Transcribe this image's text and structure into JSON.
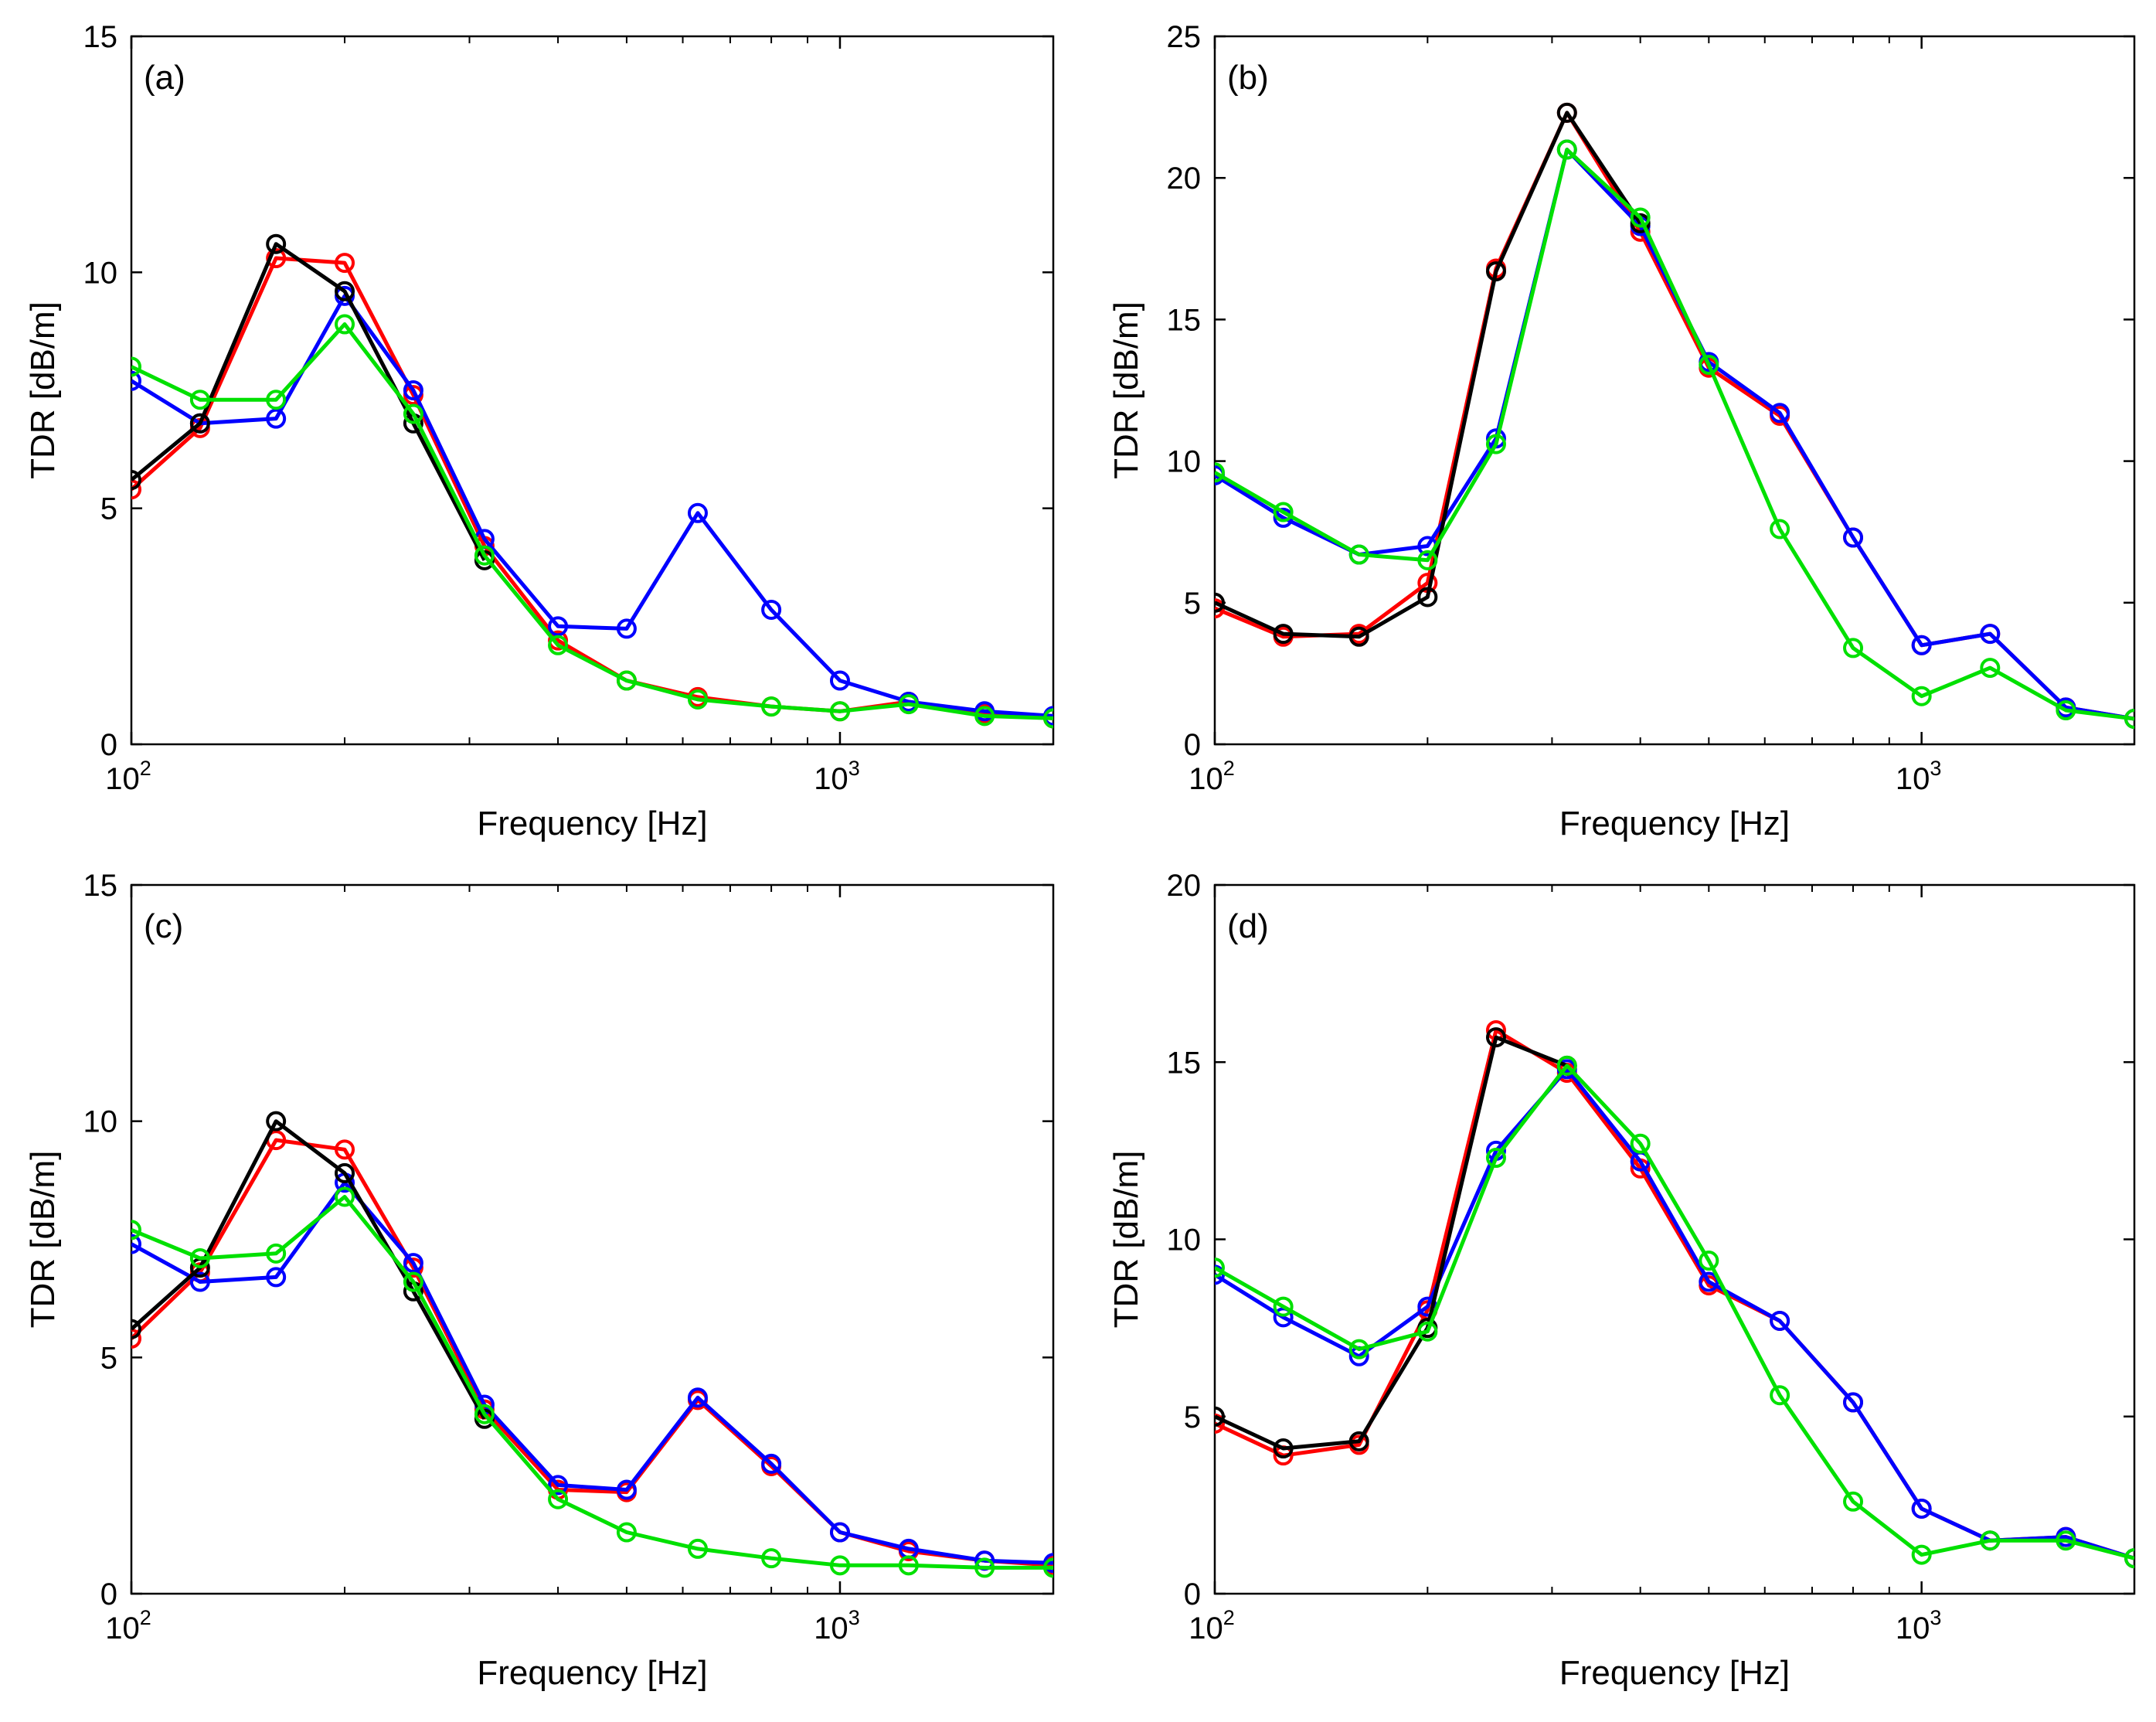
{
  "figure": {
    "series_colors": [
      "#ff0000",
      "#0000ff",
      "#000000",
      "#00e000"
    ]
  },
  "chart_data": [
    {
      "type": "line",
      "panel_label": "(a)",
      "xlabel": "Frequency [Hz]",
      "ylabel": "TDR [dB/m]",
      "xscale": "log",
      "xlim": [
        100,
        2000
      ],
      "ylim": [
        0,
        15
      ],
      "yticks": [
        "0",
        "5",
        "10",
        "15"
      ],
      "xticks": [
        {
          "base": "10",
          "exp": "2",
          "value": 100
        },
        {
          "base": "10",
          "exp": "3",
          "value": 1000
        }
      ],
      "x": [
        100,
        125,
        160,
        200,
        250,
        315,
        400,
        500,
        630,
        800,
        1000,
        1250,
        1600,
        2000
      ],
      "series": [
        {
          "name": "red",
          "color": "#ff0000",
          "x": [
            100,
            125,
            160,
            200,
            250,
            315,
            400,
            500,
            630,
            800,
            1000,
            1250,
            1600,
            2000
          ],
          "values": [
            5.4,
            6.7,
            10.3,
            10.2,
            7.4,
            4.2,
            2.2,
            1.35,
            1.0,
            0.8,
            0.7,
            0.9,
            0.65,
            0.55
          ]
        },
        {
          "name": "blue",
          "color": "#0000ff",
          "x": [
            100,
            125,
            160,
            200,
            250,
            315,
            400,
            500,
            630,
            800,
            1000,
            1250,
            1600,
            2000
          ],
          "values": [
            7.7,
            6.8,
            6.9,
            9.5,
            7.5,
            4.35,
            2.5,
            2.45,
            4.9,
            2.85,
            1.35,
            0.9,
            0.7,
            0.6
          ]
        },
        {
          "name": "black",
          "color": "#000000",
          "x": [
            100,
            125,
            160,
            200,
            250,
            315
          ],
          "values": [
            5.6,
            6.8,
            10.6,
            9.6,
            6.8,
            3.9
          ]
        },
        {
          "name": "green",
          "color": "#00e000",
          "x": [
            100,
            125,
            160,
            200,
            250,
            315,
            400,
            500,
            630,
            800,
            1000,
            1250,
            1600,
            2000
          ],
          "values": [
            8.0,
            7.3,
            7.3,
            8.9,
            7.0,
            4.0,
            2.1,
            1.35,
            0.95,
            0.8,
            0.7,
            0.85,
            0.6,
            0.55
          ]
        }
      ]
    },
    {
      "type": "line",
      "panel_label": "(b)",
      "xlabel": "Frequency [Hz]",
      "ylabel": "TDR [dB/m]",
      "xscale": "log",
      "xlim": [
        100,
        2000
      ],
      "ylim": [
        0,
        25
      ],
      "yticks": [
        "0",
        "5",
        "10",
        "15",
        "20",
        "25"
      ],
      "xticks": [
        {
          "base": "10",
          "exp": "2",
          "value": 100
        },
        {
          "base": "10",
          "exp": "3",
          "value": 1000
        }
      ],
      "x": [
        100,
        125,
        160,
        200,
        250,
        315,
        400,
        500,
        630,
        800,
        1000,
        1250,
        1600,
        2000
      ],
      "series": [
        {
          "name": "red",
          "color": "#ff0000",
          "x": [
            100,
            125,
            160,
            200,
            250,
            315,
            400,
            500,
            630,
            800,
            1000,
            1250,
            1600,
            2000
          ],
          "values": [
            4.8,
            3.8,
            3.9,
            5.7,
            16.8,
            22.3,
            18.1,
            13.3,
            11.6,
            7.3,
            3.5,
            3.9,
            1.3,
            0.9
          ]
        },
        {
          "name": "blue",
          "color": "#0000ff",
          "x": [
            100,
            125,
            160,
            200,
            250,
            315,
            400,
            500,
            630,
            800,
            1000,
            1250,
            1600,
            2000
          ],
          "values": [
            9.5,
            8.0,
            6.7,
            7.0,
            10.8,
            21.0,
            18.3,
            13.5,
            11.7,
            7.3,
            3.5,
            3.9,
            1.3,
            0.9
          ]
        },
        {
          "name": "black",
          "color": "#000000",
          "x": [
            100,
            125,
            160,
            200,
            250,
            315,
            400
          ],
          "values": [
            5.0,
            3.9,
            3.8,
            5.2,
            16.7,
            22.3,
            18.4
          ]
        },
        {
          "name": "green",
          "color": "#00e000",
          "x": [
            100,
            125,
            160,
            200,
            250,
            315,
            400,
            500,
            630,
            800,
            1000,
            1250,
            1600,
            2000
          ],
          "values": [
            9.6,
            8.2,
            6.7,
            6.5,
            10.6,
            21.0,
            18.6,
            13.4,
            7.6,
            3.4,
            1.7,
            2.7,
            1.2,
            0.9
          ]
        }
      ]
    },
    {
      "type": "line",
      "panel_label": "(c)",
      "xlabel": "Frequency [Hz]",
      "ylabel": "TDR [dB/m]",
      "xscale": "log",
      "xlim": [
        100,
        2000
      ],
      "ylim": [
        0,
        15
      ],
      "yticks": [
        "0",
        "5",
        "10",
        "15"
      ],
      "xticks": [
        {
          "base": "10",
          "exp": "2",
          "value": 100
        },
        {
          "base": "10",
          "exp": "3",
          "value": 1000
        }
      ],
      "x": [
        100,
        125,
        160,
        200,
        250,
        315,
        400,
        500,
        630,
        800,
        1000,
        1250,
        1600,
        2000
      ],
      "series": [
        {
          "name": "red",
          "color": "#ff0000",
          "x": [
            100,
            125,
            160,
            200,
            250,
            315,
            400,
            500,
            630,
            800,
            1000,
            1250,
            1600,
            2000
          ],
          "values": [
            5.4,
            6.8,
            9.6,
            9.4,
            6.9,
            3.9,
            2.2,
            2.15,
            4.1,
            2.7,
            1.3,
            0.9,
            0.7,
            0.6
          ]
        },
        {
          "name": "blue",
          "color": "#0000ff",
          "x": [
            100,
            125,
            160,
            200,
            250,
            315,
            400,
            500,
            630,
            800,
            1000,
            1250,
            1600,
            2000
          ],
          "values": [
            7.4,
            6.6,
            6.7,
            8.7,
            7.0,
            4.0,
            2.3,
            2.2,
            4.15,
            2.75,
            1.3,
            0.95,
            0.7,
            0.65
          ]
        },
        {
          "name": "black",
          "color": "#000000",
          "x": [
            100,
            125,
            160,
            200,
            250,
            315
          ],
          "values": [
            5.6,
            6.9,
            10.0,
            8.9,
            6.4,
            3.7
          ]
        },
        {
          "name": "green",
          "color": "#00e000",
          "x": [
            100,
            125,
            160,
            200,
            250,
            315,
            400,
            500,
            630,
            800,
            1000,
            1250,
            1600,
            2000
          ],
          "values": [
            7.7,
            7.1,
            7.2,
            8.4,
            6.6,
            3.8,
            2.0,
            1.3,
            0.95,
            0.75,
            0.6,
            0.6,
            0.55,
            0.55
          ]
        }
      ]
    },
    {
      "type": "line",
      "panel_label": "(d)",
      "xlabel": "Frequency [Hz]",
      "ylabel": "TDR [dB/m]",
      "xscale": "log",
      "xlim": [
        100,
        2000
      ],
      "ylim": [
        0,
        20
      ],
      "yticks": [
        "0",
        "5",
        "10",
        "15",
        "20"
      ],
      "xticks": [
        {
          "base": "10",
          "exp": "2",
          "value": 100
        },
        {
          "base": "10",
          "exp": "3",
          "value": 1000
        }
      ],
      "x": [
        100,
        125,
        160,
        200,
        250,
        315,
        400,
        500,
        630,
        800,
        1000,
        1250,
        1600,
        2000
      ],
      "series": [
        {
          "name": "red",
          "color": "#ff0000",
          "x": [
            100,
            125,
            160,
            200,
            250,
            315,
            400,
            500,
            630,
            800,
            1000,
            1250,
            1600,
            2000
          ],
          "values": [
            4.8,
            3.9,
            4.2,
            8.0,
            15.9,
            14.7,
            12.0,
            8.7,
            7.7,
            5.4,
            2.4,
            1.5,
            1.6,
            1.0
          ]
        },
        {
          "name": "blue",
          "color": "#0000ff",
          "x": [
            100,
            125,
            160,
            200,
            250,
            315,
            400,
            500,
            630,
            800,
            1000,
            1250,
            1600,
            2000
          ],
          "values": [
            9.0,
            7.8,
            6.7,
            8.1,
            12.5,
            14.8,
            12.2,
            8.8,
            7.7,
            5.4,
            2.4,
            1.5,
            1.6,
            1.0
          ]
        },
        {
          "name": "black",
          "color": "#000000",
          "x": [
            100,
            125,
            160,
            200,
            250,
            315
          ],
          "values": [
            5.0,
            4.1,
            4.3,
            7.5,
            15.7,
            14.9
          ]
        },
        {
          "name": "green",
          "color": "#00e000",
          "x": [
            100,
            125,
            160,
            200,
            250,
            315,
            400,
            500,
            630,
            800,
            1000,
            1250,
            1600,
            2000
          ],
          "values": [
            9.2,
            8.1,
            6.9,
            7.4,
            12.3,
            14.9,
            12.7,
            9.4,
            5.6,
            2.6,
            1.1,
            1.5,
            1.5,
            1.0
          ]
        }
      ]
    }
  ]
}
